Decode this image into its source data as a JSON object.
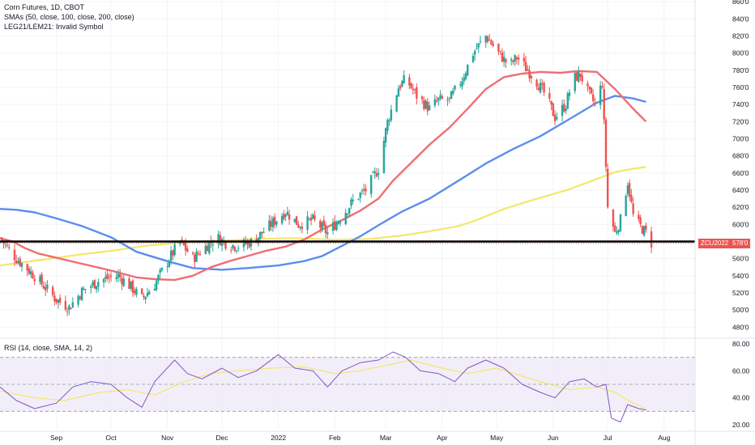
{
  "legend": {
    "line1": "Corn Futures, 1D, CBOT",
    "line2": "SMAs (50, close, 100, close, 200, close)",
    "line3": "LEG21/LEM21: Invalid Symbol"
  },
  "rsi_legend": "RSI (14, close, SMA, 14, 2)",
  "badges": {
    "symbol": "ZCU2022",
    "price": "578'0"
  },
  "colors": {
    "up": "#26a69a",
    "down": "#ef5350",
    "sma50": "#ef6e73",
    "sma100": "#5b8def",
    "sma200": "#f5e66b",
    "rsi": "#7e57c2",
    "rsi_ma": "#f5e66b",
    "rsi_band": "#ede7f6",
    "support": "#000000"
  },
  "chart_data": [
    {
      "type": "candlestick",
      "title": "Corn Futures, 1D, CBOT",
      "y_ticks": [
        "860'0",
        "840'0",
        "820'0",
        "800'0",
        "780'0",
        "760'0",
        "740'0",
        "720'0",
        "700'0",
        "680'0",
        "660'0",
        "640'0",
        "620'0",
        "600'0",
        "580'0",
        "560'0",
        "540'0",
        "520'0",
        "500'0",
        "480'0"
      ],
      "x_ticks": [
        "Sep",
        "Oct",
        "Nov",
        "Dec",
        "2022",
        "Feb",
        "Mar",
        "Apr",
        "May",
        "Jun",
        "Jul",
        "Aug"
      ],
      "ylim": [
        468,
        862
      ],
      "support_level": 580,
      "last_price": 578,
      "sma_series": [
        {
          "name": "SMA 50",
          "points": [
            [
              "2021-08-01",
              584
            ],
            [
              "2021-08-08",
              580
            ],
            [
              "2021-08-15",
              572
            ],
            [
              "2021-08-22",
              566
            ],
            [
              "2021-09-01",
              561
            ],
            [
              "2021-09-15",
              554
            ],
            [
              "2021-10-01",
              546
            ],
            [
              "2021-10-15",
              538
            ],
            [
              "2021-10-25",
              536
            ],
            [
              "2021-11-05",
              535
            ],
            [
              "2021-11-15",
              540
            ],
            [
              "2021-11-25",
              550
            ],
            [
              "2021-12-05",
              557
            ],
            [
              "2021-12-15",
              563
            ],
            [
              "2021-12-25",
              569
            ],
            [
              "2022-01-05",
              574
            ],
            [
              "2022-01-15",
              582
            ],
            [
              "2022-01-25",
              594
            ],
            [
              "2022-02-05",
              605
            ],
            [
              "2022-02-15",
              616
            ],
            [
              "2022-02-25",
              630
            ],
            [
              "2022-03-05",
              651
            ],
            [
              "2022-03-15",
              672
            ],
            [
              "2022-03-25",
              693
            ],
            [
              "2022-04-05",
              713
            ],
            [
              "2022-04-15",
              735
            ],
            [
              "2022-04-25",
              758
            ],
            [
              "2022-05-05",
              772
            ],
            [
              "2022-05-15",
              776
            ],
            [
              "2022-05-25",
              778
            ],
            [
              "2022-06-05",
              777
            ],
            [
              "2022-06-15",
              779
            ],
            [
              "2022-06-25",
              778
            ],
            [
              "2022-07-05",
              758
            ],
            [
              "2022-07-15",
              735
            ],
            [
              "2022-07-22",
              720
            ]
          ]
        },
        {
          "name": "SMA 100",
          "points": [
            [
              "2021-08-01",
              618
            ],
            [
              "2021-08-10",
              617
            ],
            [
              "2021-08-20",
              614
            ],
            [
              "2021-09-01",
              607
            ],
            [
              "2021-09-15",
              598
            ],
            [
              "2021-10-01",
              585
            ],
            [
              "2021-10-15",
              568
            ],
            [
              "2021-11-01",
              557
            ],
            [
              "2021-11-15",
              549
            ],
            [
              "2021-12-01",
              547
            ],
            [
              "2021-12-15",
              549
            ],
            [
              "2022-01-01",
              552
            ],
            [
              "2022-01-15",
              557
            ],
            [
              "2022-01-25",
              563
            ],
            [
              "2022-02-05",
              575
            ],
            [
              "2022-02-15",
              586
            ],
            [
              "2022-02-25",
              599
            ],
            [
              "2022-03-10",
              615
            ],
            [
              "2022-03-25",
              630
            ],
            [
              "2022-04-10",
              651
            ],
            [
              "2022-04-25",
              671
            ],
            [
              "2022-05-10",
              688
            ],
            [
              "2022-05-25",
              703
            ],
            [
              "2022-06-10",
              723
            ],
            [
              "2022-06-25",
              742
            ],
            [
              "2022-07-05",
              750
            ],
            [
              "2022-07-15",
              747
            ],
            [
              "2022-07-22",
              743
            ]
          ]
        },
        {
          "name": "SMA 200",
          "points": [
            [
              "2021-08-01",
              552
            ],
            [
              "2021-08-15",
              556
            ],
            [
              "2021-09-01",
              561
            ],
            [
              "2021-09-15",
              565
            ],
            [
              "2021-10-01",
              569
            ],
            [
              "2021-10-20",
              575
            ],
            [
              "2021-11-10",
              579
            ],
            [
              "2021-12-01",
              581
            ],
            [
              "2021-12-20",
              583
            ],
            [
              "2022-01-10",
              584
            ],
            [
              "2022-02-01",
              582
            ],
            [
              "2022-02-20",
              583
            ],
            [
              "2022-03-10",
              587
            ],
            [
              "2022-03-25",
              592
            ],
            [
              "2022-04-10",
              598
            ],
            [
              "2022-04-20",
              605
            ],
            [
              "2022-05-05",
              618
            ],
            [
              "2022-05-20",
              628
            ],
            [
              "2022-06-10",
              641
            ],
            [
              "2022-06-25",
              653
            ],
            [
              "2022-07-05",
              661
            ],
            [
              "2022-07-15",
              665
            ],
            [
              "2022-07-22",
              667
            ]
          ]
        }
      ],
      "price_path": [
        [
          "2021-08-01",
          584
        ],
        [
          "2021-08-10",
          560
        ],
        [
          "2021-08-20",
          540
        ],
        [
          "2021-09-01",
          512
        ],
        [
          "2021-09-08",
          503
        ],
        [
          "2021-09-15",
          522
        ],
        [
          "2021-09-25",
          535
        ],
        [
          "2021-10-05",
          540
        ],
        [
          "2021-10-12",
          527
        ],
        [
          "2021-10-18",
          513
        ],
        [
          "2021-10-25",
          530
        ],
        [
          "2021-11-02",
          560
        ],
        [
          "2021-11-08",
          580
        ],
        [
          "2021-11-15",
          560
        ],
        [
          "2021-11-20",
          570
        ],
        [
          "2021-11-28",
          585
        ],
        [
          "2021-12-05",
          576
        ],
        [
          "2021-12-10",
          575
        ],
        [
          "2021-12-18",
          580
        ],
        [
          "2021-12-28",
          600
        ],
        [
          "2022-01-05",
          615
        ],
        [
          "2022-01-12",
          600
        ],
        [
          "2022-01-20",
          605
        ],
        [
          "2022-01-28",
          590
        ],
        [
          "2022-02-05",
          610
        ],
        [
          "2022-02-12",
          630
        ],
        [
          "2022-02-18",
          640
        ],
        [
          "2022-02-25",
          665
        ],
        [
          "2022-03-02",
          720
        ],
        [
          "2022-03-08",
          760
        ],
        [
          "2022-03-12",
          770
        ],
        [
          "2022-03-18",
          750
        ],
        [
          "2022-03-25",
          735
        ],
        [
          "2022-03-30",
          745
        ],
        [
          "2022-04-05",
          745
        ],
        [
          "2022-04-12",
          770
        ],
        [
          "2022-04-18",
          800
        ],
        [
          "2022-04-25",
          820
        ],
        [
          "2022-05-02",
          800
        ],
        [
          "2022-05-08",
          785
        ],
        [
          "2022-05-12",
          795
        ],
        [
          "2022-05-18",
          780
        ],
        [
          "2022-05-22",
          770
        ],
        [
          "2022-05-28",
          750
        ],
        [
          "2022-06-02",
          725
        ],
        [
          "2022-06-08",
          740
        ],
        [
          "2022-06-12",
          770
        ],
        [
          "2022-06-16",
          775
        ],
        [
          "2022-06-20",
          755
        ],
        [
          "2022-06-24",
          740
        ],
        [
          "2022-06-28",
          765
        ],
        [
          "2022-07-01",
          620
        ],
        [
          "2022-07-05",
          590
        ],
        [
          "2022-07-08",
          605
        ],
        [
          "2022-07-12",
          650
        ],
        [
          "2022-07-15",
          610
        ],
        [
          "2022-07-18",
          600
        ],
        [
          "2022-07-22",
          590
        ],
        [
          "2022-07-25",
          578
        ]
      ]
    },
    {
      "type": "line",
      "title": "RSI (14, close, SMA, 14, 2)",
      "y_ticks": [
        "80.00",
        "60.00",
        "40.00",
        "20.00"
      ],
      "ylim": [
        17,
        83
      ],
      "bands": [
        30,
        50,
        70
      ],
      "series": [
        {
          "name": "RSI",
          "points": [
            [
              "2021-08-01",
              48
            ],
            [
              "2021-08-10",
              38
            ],
            [
              "2021-08-20",
              32
            ],
            [
              "2021-09-01",
              36
            ],
            [
              "2021-09-10",
              48
            ],
            [
              "2021-09-20",
              52
            ],
            [
              "2021-10-01",
              50
            ],
            [
              "2021-10-10",
              40
            ],
            [
              "2021-10-18",
              33
            ],
            [
              "2021-10-25",
              52
            ],
            [
              "2021-11-05",
              68
            ],
            [
              "2021-11-12",
              58
            ],
            [
              "2021-11-20",
              54
            ],
            [
              "2021-12-01",
              62
            ],
            [
              "2021-12-10",
              55
            ],
            [
              "2021-12-20",
              60
            ],
            [
              "2022-01-01",
              72
            ],
            [
              "2022-01-10",
              62
            ],
            [
              "2022-01-20",
              60
            ],
            [
              "2022-01-28",
              48
            ],
            [
              "2022-02-05",
              60
            ],
            [
              "2022-02-15",
              66
            ],
            [
              "2022-02-25",
              68
            ],
            [
              "2022-03-05",
              74
            ],
            [
              "2022-03-12",
              70
            ],
            [
              "2022-03-20",
              60
            ],
            [
              "2022-03-30",
              58
            ],
            [
              "2022-04-08",
              52
            ],
            [
              "2022-04-15",
              62
            ],
            [
              "2022-04-25",
              68
            ],
            [
              "2022-05-05",
              62
            ],
            [
              "2022-05-15",
              50
            ],
            [
              "2022-05-25",
              44
            ],
            [
              "2022-06-02",
              40
            ],
            [
              "2022-06-10",
              52
            ],
            [
              "2022-06-18",
              54
            ],
            [
              "2022-06-25",
              48
            ],
            [
              "2022-06-30",
              50
            ],
            [
              "2022-07-03",
              25
            ],
            [
              "2022-07-08",
              22
            ],
            [
              "2022-07-12",
              35
            ],
            [
              "2022-07-18",
              32
            ],
            [
              "2022-07-22",
              31
            ]
          ]
        },
        {
          "name": "RSI-based MA",
          "points": [
            [
              "2021-08-01",
              45
            ],
            [
              "2021-08-20",
              40
            ],
            [
              "2021-09-05",
              38
            ],
            [
              "2021-09-25",
              44
            ],
            [
              "2021-10-10",
              46
            ],
            [
              "2021-10-25",
              42
            ],
            [
              "2021-11-10",
              52
            ],
            [
              "2021-11-25",
              58
            ],
            [
              "2021-12-10",
              60
            ],
            [
              "2021-12-28",
              62
            ],
            [
              "2022-01-15",
              63
            ],
            [
              "2022-02-01",
              58
            ],
            [
              "2022-02-15",
              60
            ],
            [
              "2022-03-01",
              64
            ],
            [
              "2022-03-15",
              68
            ],
            [
              "2022-04-01",
              62
            ],
            [
              "2022-04-15",
              58
            ],
            [
              "2022-05-01",
              62
            ],
            [
              "2022-05-15",
              56
            ],
            [
              "2022-05-30",
              50
            ],
            [
              "2022-06-10",
              46
            ],
            [
              "2022-06-25",
              48
            ],
            [
              "2022-07-05",
              44
            ],
            [
              "2022-07-15",
              36
            ],
            [
              "2022-07-22",
              32
            ]
          ]
        }
      ]
    }
  ]
}
